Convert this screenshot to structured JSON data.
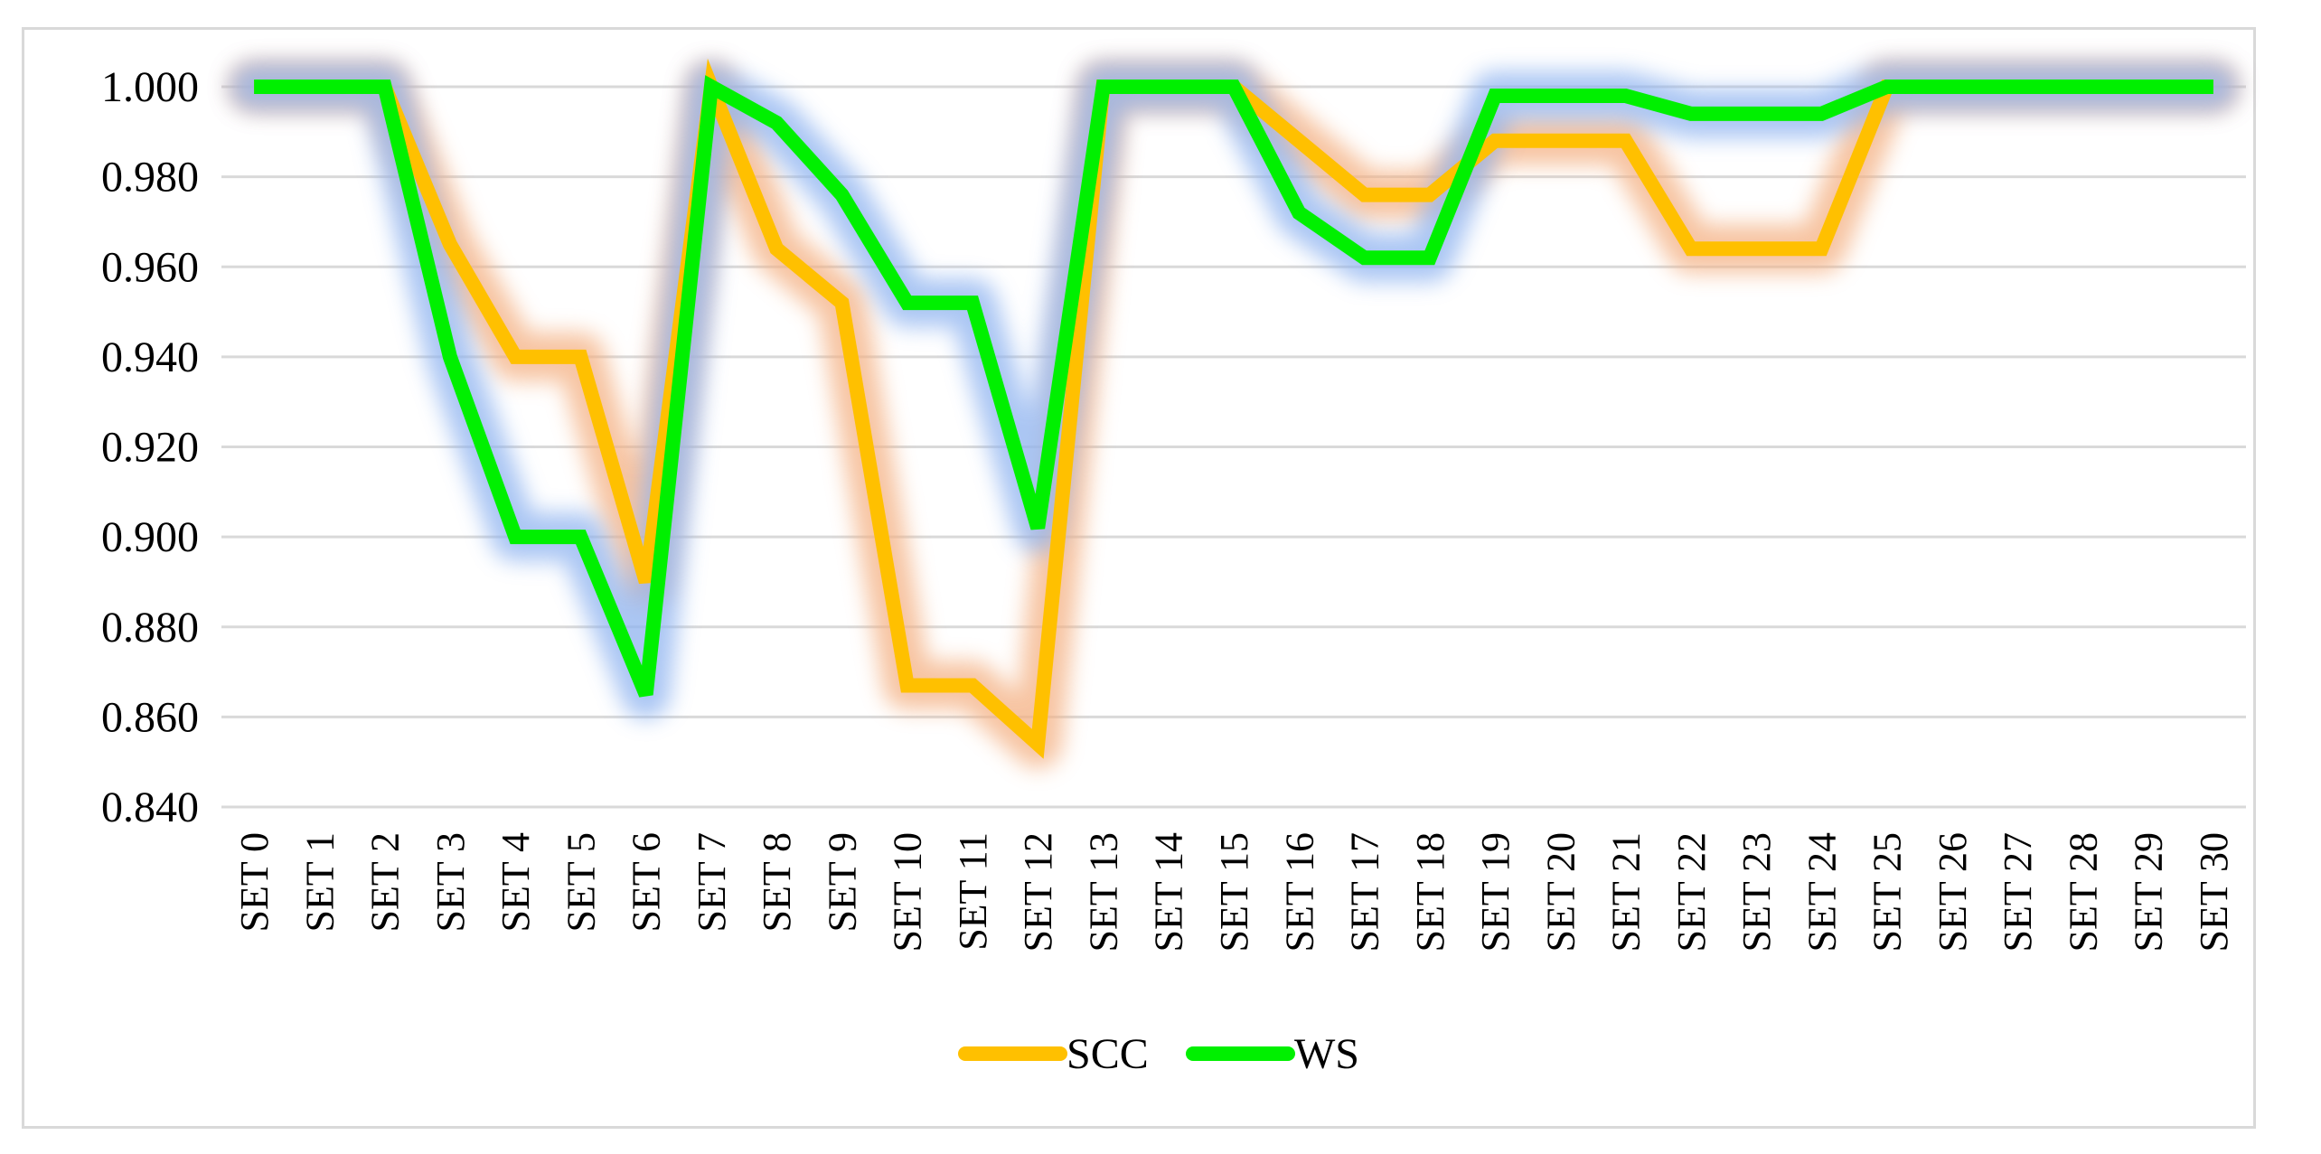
{
  "chart_data": {
    "type": "line",
    "title": "",
    "xlabel": "",
    "ylabel": "",
    "categories": [
      "SET 0",
      "SET 1",
      "SET 2",
      "SET 3",
      "SET 4",
      "SET 5",
      "SET 6",
      "SET 7",
      "SET 8",
      "SET 9",
      "SET 10",
      "SET 11",
      "SET 12",
      "SET 13",
      "SET 14",
      "SET 15",
      "SET 16",
      "SET 17",
      "SET 18",
      "SET 19",
      "SET 20",
      "SET 21",
      "SET 22",
      "SET 23",
      "SET 24",
      "SET 25",
      "SET 26",
      "SET 27",
      "SET 28",
      "SET 29",
      "SET 30"
    ],
    "y_tick_labels": [
      "0.840",
      "0.860",
      "0.880",
      "0.900",
      "0.920",
      "0.940",
      "0.960",
      "0.980",
      "1.000"
    ],
    "ylim": [
      0.84,
      1.0
    ],
    "grid": true,
    "legend_position": "bottom",
    "series": [
      {
        "name": "SCC",
        "color": "#FFC000",
        "glow": "#F4B183",
        "values": [
          1.0,
          1.0,
          1.0,
          0.965,
          0.94,
          0.94,
          0.89,
          1.0,
          0.964,
          0.952,
          0.867,
          0.867,
          0.854,
          1.0,
          1.0,
          1.0,
          0.988,
          0.976,
          0.976,
          0.988,
          0.988,
          0.988,
          0.964,
          0.964,
          0.964,
          1.0,
          1.0,
          1.0,
          1.0,
          1.0,
          1.0
        ]
      },
      {
        "name": "WS",
        "color": "#00F000",
        "glow": "#8FB4F0",
        "values": [
          1.0,
          1.0,
          1.0,
          0.94,
          0.9,
          0.9,
          0.865,
          1.0,
          0.992,
          0.976,
          0.952,
          0.952,
          0.902,
          1.0,
          1.0,
          1.0,
          0.972,
          0.962,
          0.962,
          0.998,
          0.998,
          0.998,
          0.994,
          0.994,
          0.994,
          1.0,
          1.0,
          1.0,
          1.0,
          1.0,
          1.0
        ]
      }
    ]
  }
}
